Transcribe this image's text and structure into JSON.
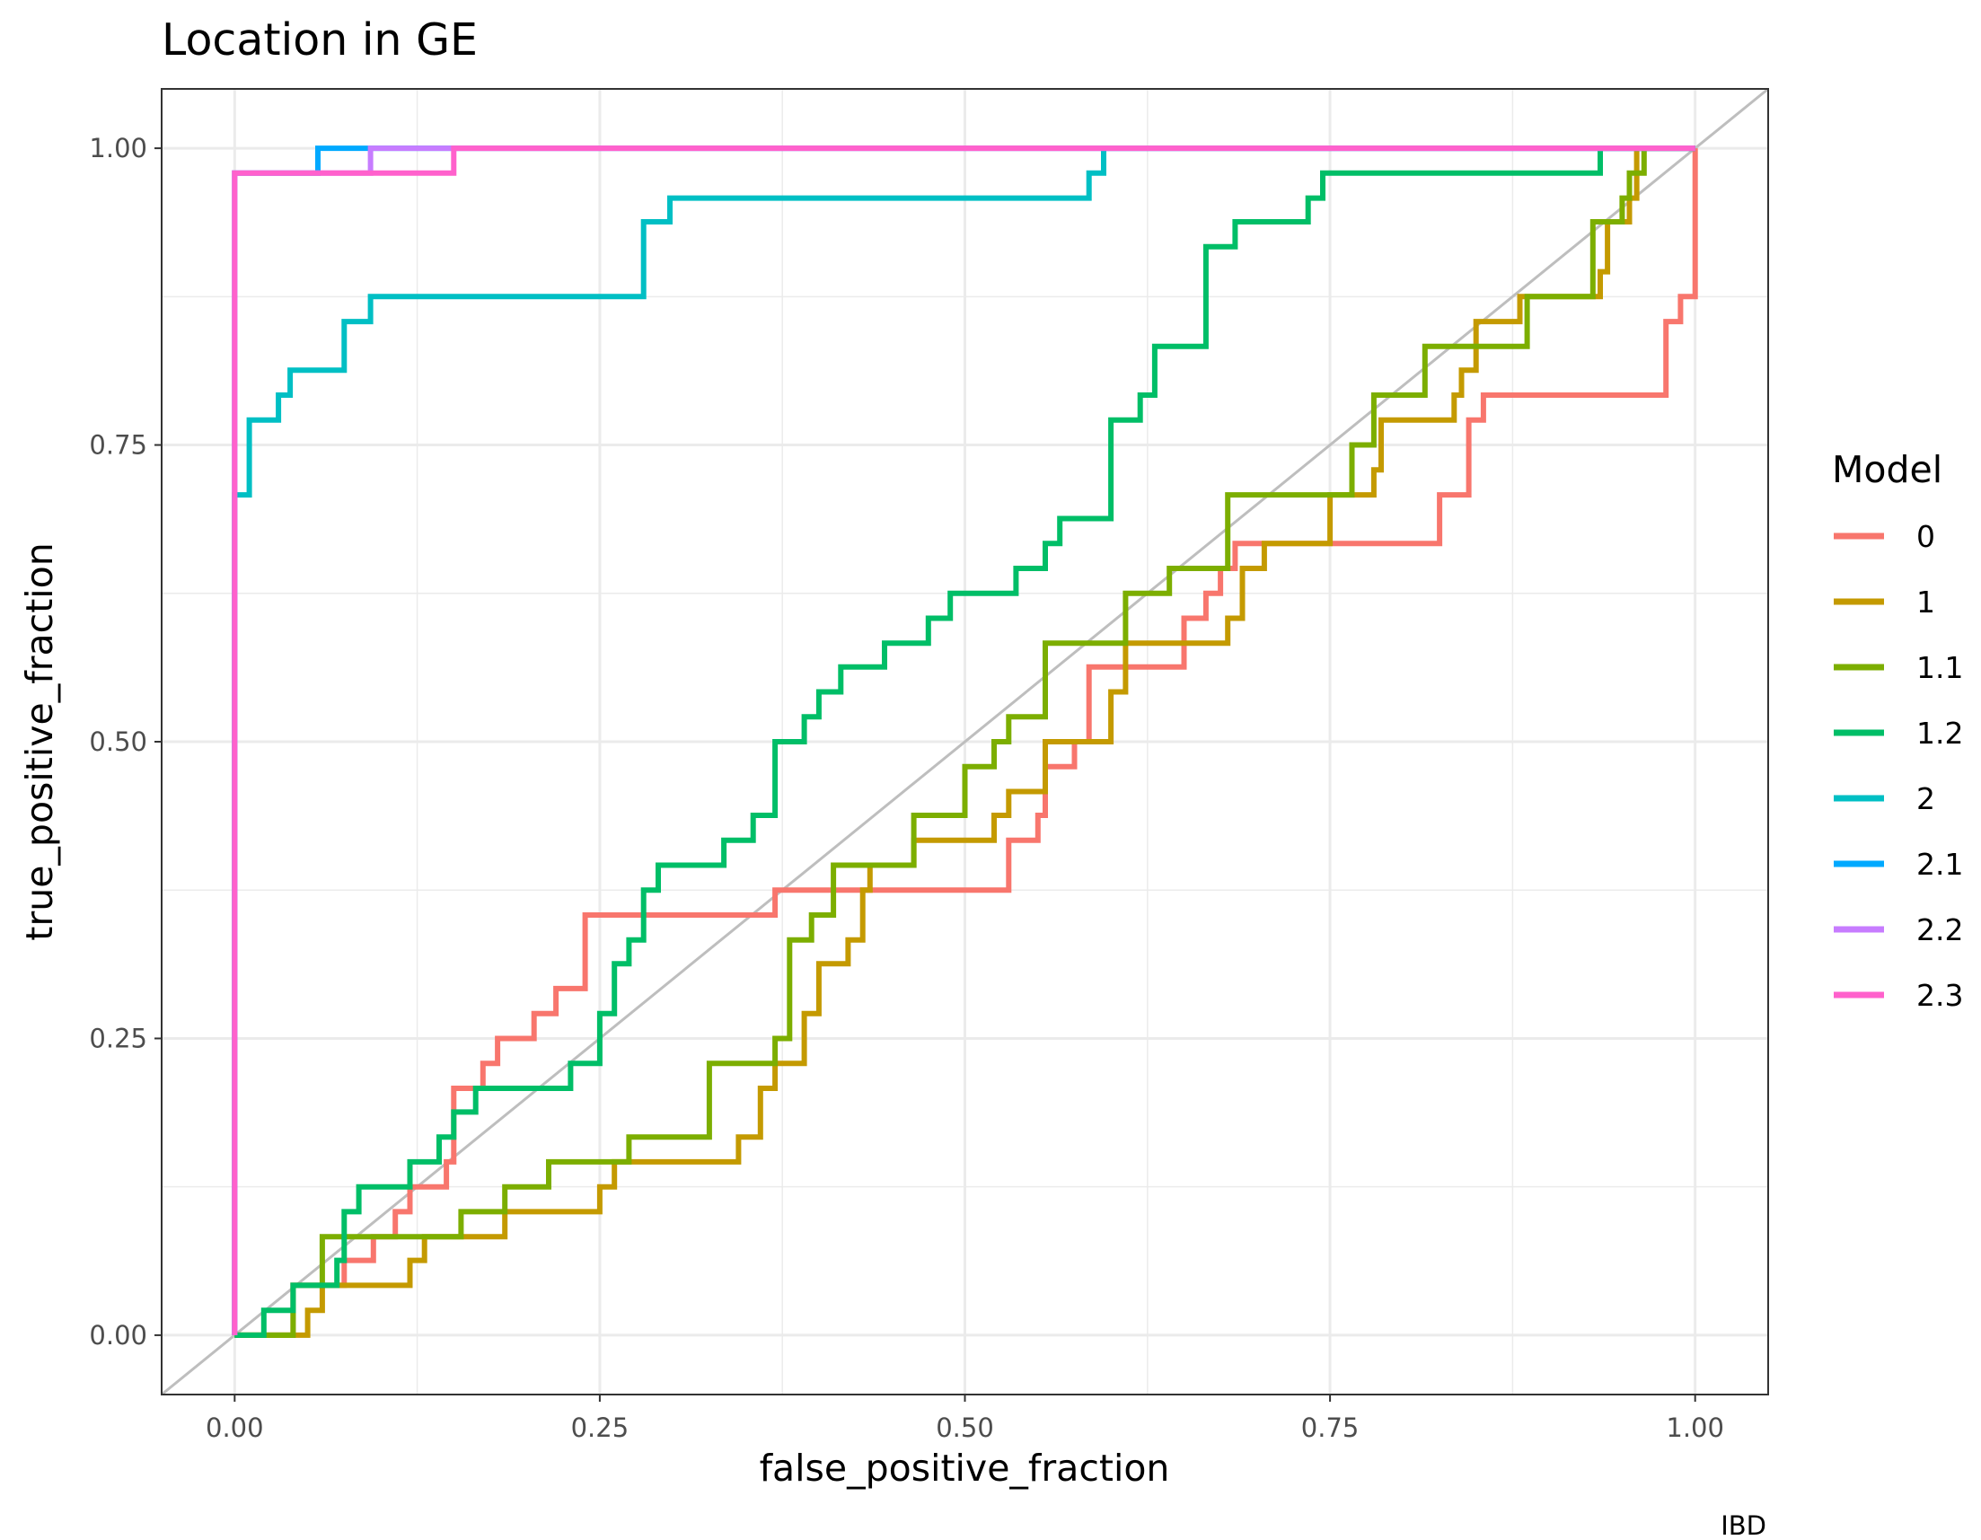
{
  "chart_data": {
    "type": "line",
    "title": "Location in GE",
    "xlabel": "false_positive_fraction",
    "ylabel": "true_positive_fraction",
    "caption": "IBD",
    "xlim": [
      -0.05,
      1.05
    ],
    "ylim": [
      -0.05,
      1.05
    ],
    "xticks": [
      0,
      0.25,
      0.5,
      0.75,
      1
    ],
    "xtick_labels": [
      "0.00",
      "0.25",
      "0.50",
      "0.75",
      "1.00"
    ],
    "yticks": [
      0,
      0.25,
      0.5,
      0.75,
      1
    ],
    "ytick_labels": [
      "0.00",
      "0.25",
      "0.50",
      "0.75",
      "1.00"
    ],
    "grid": true,
    "reference_line": "diagonal",
    "legend_title": "Model",
    "legend_position": "right",
    "series": [
      {
        "name": "0",
        "color": "#F8766D",
        "points": [
          [
            0,
            0
          ],
          [
            0.04,
            0
          ],
          [
            0.04,
            0.042
          ],
          [
            0.075,
            0.042
          ],
          [
            0.075,
            0.063
          ],
          [
            0.095,
            0.063
          ],
          [
            0.095,
            0.083
          ],
          [
            0.11,
            0.083
          ],
          [
            0.11,
            0.104
          ],
          [
            0.12,
            0.104
          ],
          [
            0.12,
            0.125
          ],
          [
            0.145,
            0.125
          ],
          [
            0.145,
            0.146
          ],
          [
            0.15,
            0.146
          ],
          [
            0.15,
            0.188
          ],
          [
            0.15,
            0.208
          ],
          [
            0.17,
            0.208
          ],
          [
            0.17,
            0.229
          ],
          [
            0.18,
            0.229
          ],
          [
            0.18,
            0.25
          ],
          [
            0.205,
            0.25
          ],
          [
            0.205,
            0.271
          ],
          [
            0.22,
            0.271
          ],
          [
            0.22,
            0.292
          ],
          [
            0.24,
            0.292
          ],
          [
            0.24,
            0.354
          ],
          [
            0.37,
            0.354
          ],
          [
            0.37,
            0.375
          ],
          [
            0.53,
            0.375
          ],
          [
            0.53,
            0.417
          ],
          [
            0.55,
            0.417
          ],
          [
            0.55,
            0.438
          ],
          [
            0.555,
            0.438
          ],
          [
            0.555,
            0.479
          ],
          [
            0.575,
            0.479
          ],
          [
            0.575,
            0.5
          ],
          [
            0.585,
            0.5
          ],
          [
            0.585,
            0.542
          ],
          [
            0.585,
            0.563
          ],
          [
            0.65,
            0.563
          ],
          [
            0.65,
            0.604
          ],
          [
            0.665,
            0.604
          ],
          [
            0.665,
            0.625
          ],
          [
            0.675,
            0.625
          ],
          [
            0.675,
            0.646
          ],
          [
            0.685,
            0.646
          ],
          [
            0.685,
            0.667
          ],
          [
            0.825,
            0.667
          ],
          [
            0.825,
            0.708
          ],
          [
            0.845,
            0.708
          ],
          [
            0.845,
            0.771
          ],
          [
            0.855,
            0.771
          ],
          [
            0.855,
            0.792
          ],
          [
            0.98,
            0.792
          ],
          [
            0.98,
            0.854
          ],
          [
            0.99,
            0.854
          ],
          [
            0.99,
            0.875
          ],
          [
            1,
            0.875
          ],
          [
            1,
            1
          ]
        ]
      },
      {
        "name": "1",
        "color": "#C49A00",
        "points": [
          [
            0,
            0
          ],
          [
            0.05,
            0
          ],
          [
            0.05,
            0.021
          ],
          [
            0.06,
            0.021
          ],
          [
            0.06,
            0.042
          ],
          [
            0.12,
            0.042
          ],
          [
            0.12,
            0.063
          ],
          [
            0.13,
            0.063
          ],
          [
            0.13,
            0.083
          ],
          [
            0.185,
            0.083
          ],
          [
            0.185,
            0.104
          ],
          [
            0.25,
            0.104
          ],
          [
            0.25,
            0.125
          ],
          [
            0.26,
            0.125
          ],
          [
            0.26,
            0.146
          ],
          [
            0.345,
            0.146
          ],
          [
            0.345,
            0.167
          ],
          [
            0.36,
            0.167
          ],
          [
            0.36,
            0.208
          ],
          [
            0.37,
            0.208
          ],
          [
            0.37,
            0.229
          ],
          [
            0.39,
            0.229
          ],
          [
            0.39,
            0.271
          ],
          [
            0.4,
            0.271
          ],
          [
            0.4,
            0.313
          ],
          [
            0.42,
            0.313
          ],
          [
            0.42,
            0.333
          ],
          [
            0.43,
            0.333
          ],
          [
            0.43,
            0.354
          ],
          [
            0.43,
            0.375
          ],
          [
            0.435,
            0.375
          ],
          [
            0.435,
            0.396
          ],
          [
            0.465,
            0.396
          ],
          [
            0.465,
            0.417
          ],
          [
            0.52,
            0.417
          ],
          [
            0.52,
            0.438
          ],
          [
            0.53,
            0.438
          ],
          [
            0.53,
            0.458
          ],
          [
            0.555,
            0.458
          ],
          [
            0.555,
            0.5
          ],
          [
            0.6,
            0.5
          ],
          [
            0.6,
            0.542
          ],
          [
            0.61,
            0.542
          ],
          [
            0.61,
            0.583
          ],
          [
            0.68,
            0.583
          ],
          [
            0.68,
            0.604
          ],
          [
            0.69,
            0.604
          ],
          [
            0.69,
            0.646
          ],
          [
            0.705,
            0.646
          ],
          [
            0.705,
            0.667
          ],
          [
            0.75,
            0.667
          ],
          [
            0.75,
            0.708
          ],
          [
            0.78,
            0.708
          ],
          [
            0.78,
            0.729
          ],
          [
            0.785,
            0.729
          ],
          [
            0.785,
            0.771
          ],
          [
            0.835,
            0.771
          ],
          [
            0.835,
            0.792
          ],
          [
            0.84,
            0.792
          ],
          [
            0.84,
            0.813
          ],
          [
            0.85,
            0.813
          ],
          [
            0.85,
            0.854
          ],
          [
            0.88,
            0.854
          ],
          [
            0.88,
            0.875
          ],
          [
            0.935,
            0.875
          ],
          [
            0.935,
            0.896
          ],
          [
            0.94,
            0.896
          ],
          [
            0.94,
            0.938
          ],
          [
            0.955,
            0.938
          ],
          [
            0.955,
            0.958
          ],
          [
            0.96,
            0.958
          ],
          [
            0.96,
            1
          ],
          [
            1,
            1
          ]
        ]
      },
      {
        "name": "1.1",
        "color": "#7CAE00",
        "points": [
          [
            0,
            0
          ],
          [
            0.04,
            0
          ],
          [
            0.04,
            0.042
          ],
          [
            0.06,
            0.042
          ],
          [
            0.06,
            0.083
          ],
          [
            0.155,
            0.083
          ],
          [
            0.155,
            0.104
          ],
          [
            0.185,
            0.104
          ],
          [
            0.185,
            0.125
          ],
          [
            0.215,
            0.125
          ],
          [
            0.215,
            0.146
          ],
          [
            0.27,
            0.146
          ],
          [
            0.27,
            0.167
          ],
          [
            0.325,
            0.167
          ],
          [
            0.325,
            0.229
          ],
          [
            0.37,
            0.229
          ],
          [
            0.37,
            0.25
          ],
          [
            0.38,
            0.25
          ],
          [
            0.38,
            0.333
          ],
          [
            0.395,
            0.333
          ],
          [
            0.395,
            0.354
          ],
          [
            0.41,
            0.354
          ],
          [
            0.41,
            0.396
          ],
          [
            0.465,
            0.396
          ],
          [
            0.465,
            0.438
          ],
          [
            0.5,
            0.438
          ],
          [
            0.5,
            0.479
          ],
          [
            0.52,
            0.479
          ],
          [
            0.52,
            0.5
          ],
          [
            0.53,
            0.5
          ],
          [
            0.53,
            0.521
          ],
          [
            0.555,
            0.521
          ],
          [
            0.555,
            0.583
          ],
          [
            0.61,
            0.583
          ],
          [
            0.61,
            0.625
          ],
          [
            0.64,
            0.625
          ],
          [
            0.64,
            0.646
          ],
          [
            0.68,
            0.646
          ],
          [
            0.68,
            0.708
          ],
          [
            0.765,
            0.708
          ],
          [
            0.765,
            0.75
          ],
          [
            0.78,
            0.75
          ],
          [
            0.78,
            0.792
          ],
          [
            0.815,
            0.792
          ],
          [
            0.815,
            0.833
          ],
          [
            0.885,
            0.833
          ],
          [
            0.885,
            0.875
          ],
          [
            0.93,
            0.875
          ],
          [
            0.93,
            0.938
          ],
          [
            0.95,
            0.938
          ],
          [
            0.95,
            0.958
          ],
          [
            0.955,
            0.958
          ],
          [
            0.955,
            0.979
          ],
          [
            0.965,
            0.979
          ],
          [
            0.965,
            1
          ],
          [
            1,
            1
          ]
        ]
      },
      {
        "name": "1.2",
        "color": "#00BE67",
        "points": [
          [
            0,
            0
          ],
          [
            0.02,
            0
          ],
          [
            0.02,
            0.021
          ],
          [
            0.04,
            0.021
          ],
          [
            0.04,
            0.042
          ],
          [
            0.07,
            0.042
          ],
          [
            0.07,
            0.063
          ],
          [
            0.075,
            0.063
          ],
          [
            0.075,
            0.104
          ],
          [
            0.085,
            0.104
          ],
          [
            0.085,
            0.125
          ],
          [
            0.12,
            0.125
          ],
          [
            0.12,
            0.146
          ],
          [
            0.14,
            0.146
          ],
          [
            0.14,
            0.167
          ],
          [
            0.15,
            0.167
          ],
          [
            0.15,
            0.188
          ],
          [
            0.165,
            0.188
          ],
          [
            0.165,
            0.208
          ],
          [
            0.23,
            0.208
          ],
          [
            0.23,
            0.229
          ],
          [
            0.25,
            0.229
          ],
          [
            0.25,
            0.271
          ],
          [
            0.26,
            0.271
          ],
          [
            0.26,
            0.313
          ],
          [
            0.27,
            0.313
          ],
          [
            0.27,
            0.333
          ],
          [
            0.28,
            0.333
          ],
          [
            0.28,
            0.375
          ],
          [
            0.29,
            0.375
          ],
          [
            0.29,
            0.396
          ],
          [
            0.335,
            0.396
          ],
          [
            0.335,
            0.417
          ],
          [
            0.355,
            0.417
          ],
          [
            0.355,
            0.438
          ],
          [
            0.37,
            0.438
          ],
          [
            0.37,
            0.5
          ],
          [
            0.39,
            0.5
          ],
          [
            0.39,
            0.521
          ],
          [
            0.4,
            0.521
          ],
          [
            0.4,
            0.542
          ],
          [
            0.415,
            0.542
          ],
          [
            0.415,
            0.563
          ],
          [
            0.445,
            0.563
          ],
          [
            0.445,
            0.583
          ],
          [
            0.475,
            0.583
          ],
          [
            0.475,
            0.604
          ],
          [
            0.49,
            0.604
          ],
          [
            0.49,
            0.625
          ],
          [
            0.535,
            0.625
          ],
          [
            0.535,
            0.646
          ],
          [
            0.555,
            0.646
          ],
          [
            0.555,
            0.667
          ],
          [
            0.565,
            0.667
          ],
          [
            0.565,
            0.688
          ],
          [
            0.6,
            0.688
          ],
          [
            0.6,
            0.771
          ],
          [
            0.62,
            0.771
          ],
          [
            0.62,
            0.792
          ],
          [
            0.63,
            0.792
          ],
          [
            0.63,
            0.833
          ],
          [
            0.665,
            0.833
          ],
          [
            0.665,
            0.917
          ],
          [
            0.685,
            0.917
          ],
          [
            0.685,
            0.938
          ],
          [
            0.735,
            0.938
          ],
          [
            0.735,
            0.958
          ],
          [
            0.745,
            0.958
          ],
          [
            0.745,
            0.979
          ],
          [
            0.935,
            0.979
          ],
          [
            0.935,
            1
          ],
          [
            1,
            1
          ]
        ]
      },
      {
        "name": "2",
        "color": "#00BFC4",
        "points": [
          [
            0,
            0
          ],
          [
            0,
            0.708
          ],
          [
            0.01,
            0.708
          ],
          [
            0.01,
            0.771
          ],
          [
            0.03,
            0.771
          ],
          [
            0.03,
            0.792
          ],
          [
            0.038,
            0.792
          ],
          [
            0.038,
            0.813
          ],
          [
            0.075,
            0.813
          ],
          [
            0.075,
            0.854
          ],
          [
            0.093,
            0.854
          ],
          [
            0.093,
            0.875
          ],
          [
            0.28,
            0.875
          ],
          [
            0.28,
            0.938
          ],
          [
            0.298,
            0.938
          ],
          [
            0.298,
            0.958
          ],
          [
            0.585,
            0.958
          ],
          [
            0.585,
            0.979
          ],
          [
            0.595,
            0.979
          ],
          [
            0.595,
            1
          ],
          [
            1,
            1
          ]
        ]
      },
      {
        "name": "2.1",
        "color": "#00A9FF",
        "points": [
          [
            0,
            0
          ],
          [
            0,
            0.979
          ],
          [
            0.057,
            0.979
          ],
          [
            0.057,
            1
          ],
          [
            1,
            1
          ]
        ]
      },
      {
        "name": "2.2",
        "color": "#C77CFF",
        "points": [
          [
            0,
            0
          ],
          [
            0,
            0.979
          ],
          [
            0.093,
            0.979
          ],
          [
            0.093,
            1
          ],
          [
            1,
            1
          ]
        ]
      },
      {
        "name": "2.3",
        "color": "#FF61CC",
        "points": [
          [
            0,
            0
          ],
          [
            0,
            0.979
          ],
          [
            0.15,
            0.979
          ],
          [
            0.15,
            1
          ],
          [
            1,
            1
          ]
        ]
      }
    ]
  }
}
